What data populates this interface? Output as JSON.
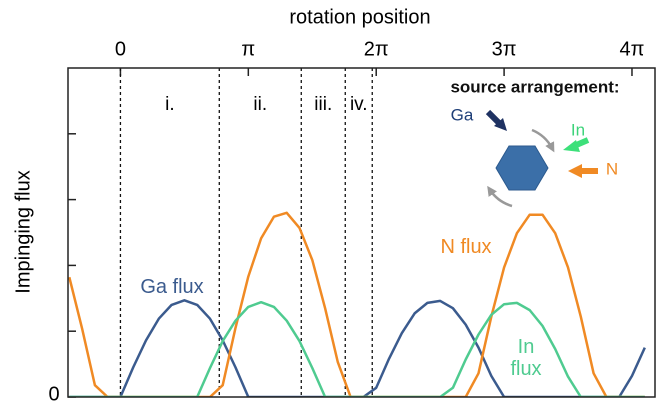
{
  "chart_data": {
    "type": "line",
    "title": "rotation position",
    "y_label": "Impinging flux",
    "xlim": [
      -0.41,
      4.18
    ],
    "xticks": [
      0,
      {
        "value": 1,
        "label": "π"
      },
      {
        "value": 2,
        "label": "2π"
      },
      {
        "value": 3,
        "label": "3π"
      },
      {
        "value": 4,
        "label": "4π"
      }
    ],
    "ylim": [
      0,
      5
    ],
    "yticks": [
      0
    ],
    "yminor_ticks": [
      1,
      2,
      3,
      4
    ],
    "dividers": [
      0,
      0.773,
      1.414,
      1.758,
      1.969
    ],
    "regions": [
      "i.",
      "ii.",
      "iii.",
      "iv."
    ],
    "x": [
      -0.4,
      -0.3,
      -0.2,
      -0.1,
      0,
      0.1,
      0.2,
      0.3,
      0.4,
      0.5,
      0.6,
      0.7,
      0.8,
      0.9,
      1.0,
      1.1,
      1.2,
      1.3,
      1.4,
      1.5,
      1.6,
      1.7,
      1.8,
      1.9,
      2.0,
      2.1,
      2.2,
      2.3,
      2.4,
      2.5,
      2.6,
      2.7,
      2.8,
      2.9,
      3.0,
      3.1,
      3.2,
      3.3,
      3.4,
      3.5,
      3.6,
      3.7,
      3.8,
      3.9,
      4.0,
      4.1
    ],
    "series": [
      {
        "name": "Ga flux",
        "color": "#3b5b8e",
        "values": [
          0,
          0,
          0,
          0,
          0,
          0.45,
          0.86,
          1.19,
          1.4,
          1.47,
          1.4,
          1.19,
          0.86,
          0.45,
          0,
          0,
          0,
          0,
          0,
          0,
          0,
          0,
          0,
          0,
          0.14,
          0.58,
          0.97,
          1.27,
          1.43,
          1.46,
          1.35,
          1.1,
          0.75,
          0.32,
          0,
          0,
          0,
          0,
          0,
          0,
          0,
          0,
          0,
          0,
          0.32,
          0.75
        ]
      },
      {
        "name": "N flux",
        "color": "#f08a24",
        "values": [
          1.82,
          1.04,
          0.18,
          0,
          0,
          0,
          0,
          0,
          0,
          0,
          0,
          0,
          0.18,
          1.05,
          1.83,
          2.41,
          2.74,
          2.8,
          2.57,
          2.08,
          1.35,
          0.53,
          0,
          0,
          0,
          0,
          0,
          0,
          0,
          0,
          0,
          0,
          0.36,
          1.22,
          1.97,
          2.49,
          2.77,
          2.77,
          2.49,
          1.97,
          1.22,
          0.36,
          0,
          0,
          0,
          0
        ]
      },
      {
        "name": "In flux",
        "color": "#4fcb90",
        "values": [
          0,
          0,
          0,
          0,
          0,
          0,
          0,
          0,
          0,
          0,
          0,
          0.44,
          0.85,
          1.16,
          1.37,
          1.44,
          1.37,
          1.16,
          0.85,
          0.44,
          0,
          0,
          0,
          0,
          0,
          0,
          0,
          0,
          0,
          0,
          0.14,
          0.57,
          0.95,
          1.25,
          1.41,
          1.43,
          1.32,
          1.08,
          0.73,
          0.31,
          0,
          0,
          0,
          0,
          0,
          0
        ]
      }
    ],
    "inset": {
      "title": "source arrangement:",
      "sources": [
        "Ga",
        "In",
        "N"
      ]
    }
  }
}
